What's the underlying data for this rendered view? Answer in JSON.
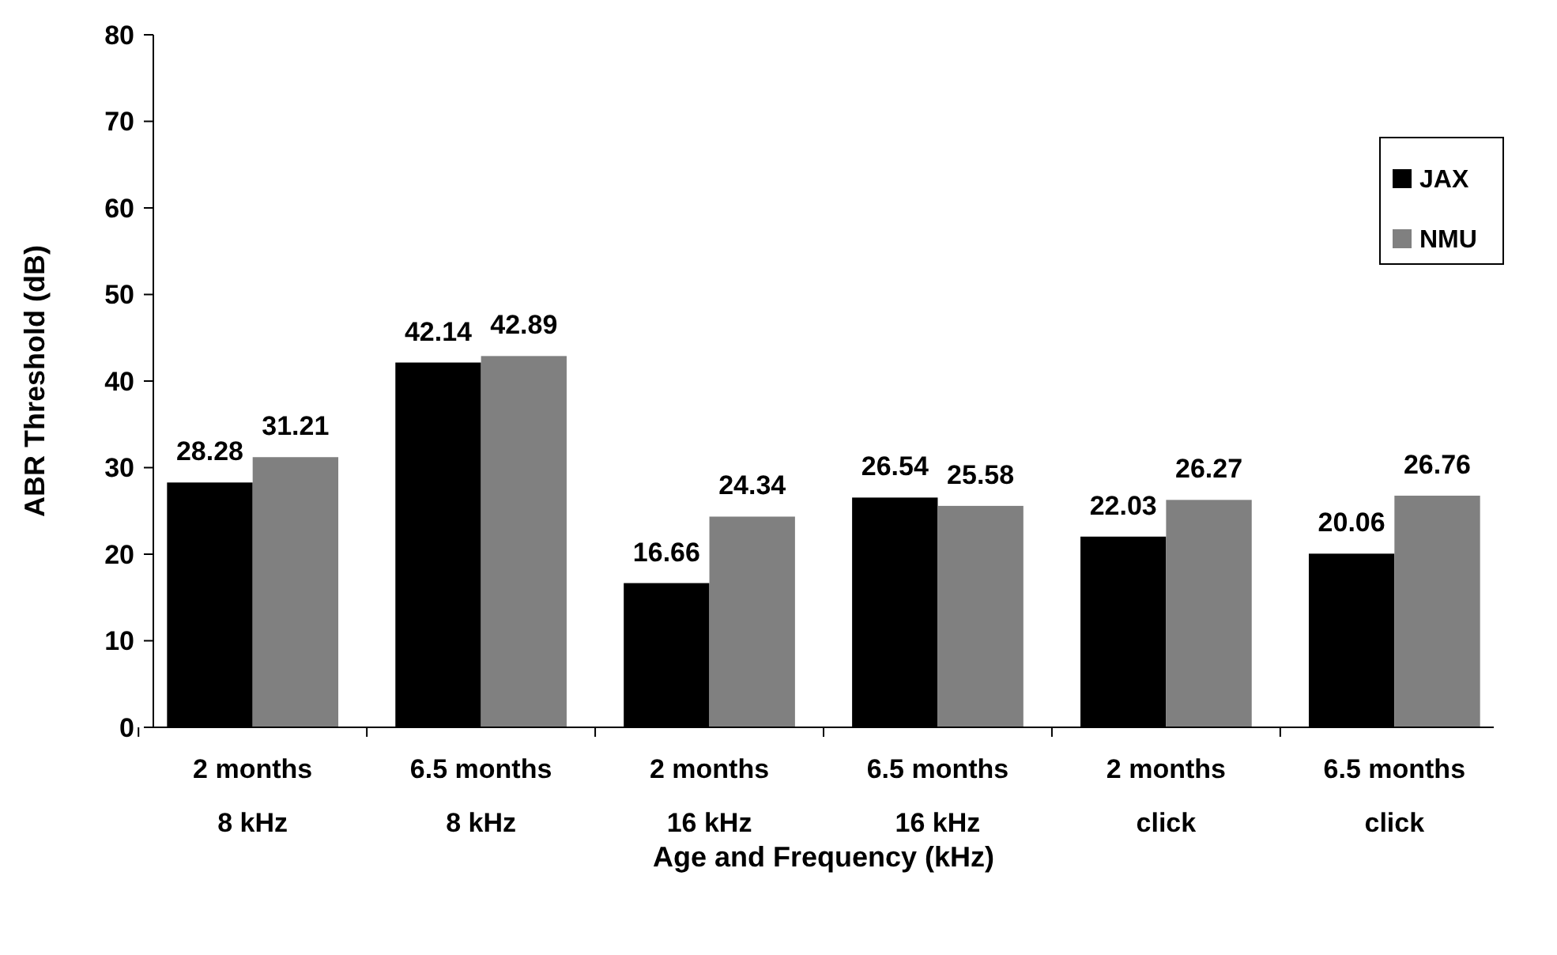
{
  "chart_data": {
    "type": "bar",
    "xlabel": "Age and Frequency (kHz)",
    "ylabel": "ABR Threshold (dB)",
    "categories": [
      "2 months\n8 kHz",
      "6.5 months\n8 kHz",
      "2 months\n16 kHz",
      "6.5 months\n16 kHz",
      "2 months\nclick",
      "6.5 months\nclick"
    ],
    "series": [
      {
        "name": "JAX",
        "color": "#000000",
        "values": [
          28.28,
          42.14,
          16.66,
          26.54,
          22.03,
          20.06
        ]
      },
      {
        "name": "NMU",
        "color": "#808080",
        "values": [
          31.21,
          42.89,
          24.34,
          25.58,
          26.27,
          26.76
        ]
      }
    ],
    "ylim": [
      0,
      80
    ],
    "yticks": [
      0,
      10,
      20,
      30,
      40,
      50,
      60,
      70,
      80
    ],
    "data_labels": true,
    "legend": "top right",
    "grid": false
  }
}
